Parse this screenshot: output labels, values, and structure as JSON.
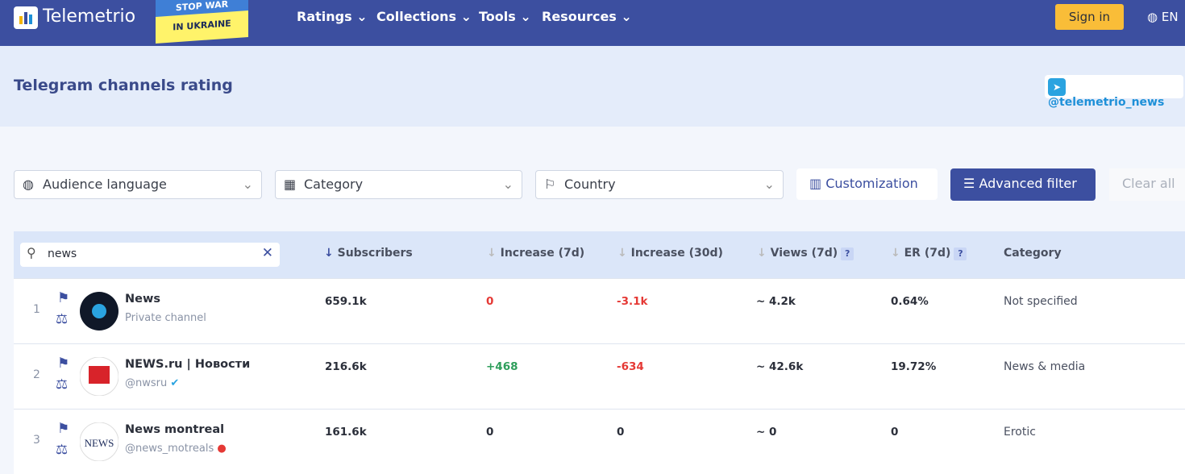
{
  "header": {
    "logo": "Telemetrio",
    "badge": {
      "line1": "STOP WAR",
      "line2": "IN UKRAINE"
    },
    "nav": [
      "Ratings",
      "Collections",
      "Tools",
      "Resources"
    ],
    "sign_in": "Sign in",
    "language": "EN"
  },
  "subheader": {
    "title": "Telegram channels rating",
    "channel": "@telemetrio_news"
  },
  "filters": {
    "audience_language": "Audience language",
    "category": "Category",
    "country": "Country",
    "customization": "Customization",
    "advanced_filter": "Advanced filter",
    "clear_all": "Clear all"
  },
  "table": {
    "search": "news",
    "columns": [
      "Subscribers",
      "Increase (7d)",
      "Increase (30d)",
      "Views (7d)",
      "ER (7d)",
      "Category"
    ],
    "help": "?",
    "rows": [
      {
        "rank": "1",
        "name": "News",
        "handle": "Private channel",
        "subscribers": "659.1k",
        "increase_7d": "0",
        "increase_30d": "-3.1k",
        "views_7d": "~ 4.2k",
        "er_7d": "0.64%",
        "category": "Not specified"
      },
      {
        "rank": "2",
        "name": "NEWS.ru | Новости",
        "handle": "@nwsru",
        "subscribers": "216.6k",
        "increase_7d": "+468",
        "increase_30d": "-634",
        "views_7d": "~ 42.6k",
        "er_7d": "19.72%",
        "category": "News & media"
      },
      {
        "rank": "3",
        "name": "News montreal",
        "handle": "@news_motreals",
        "subscribers": "161.6k",
        "increase_7d": "0",
        "increase_30d": "0",
        "views_7d": "~ 0",
        "er_7d": "0",
        "category": "Erotic"
      }
    ]
  }
}
